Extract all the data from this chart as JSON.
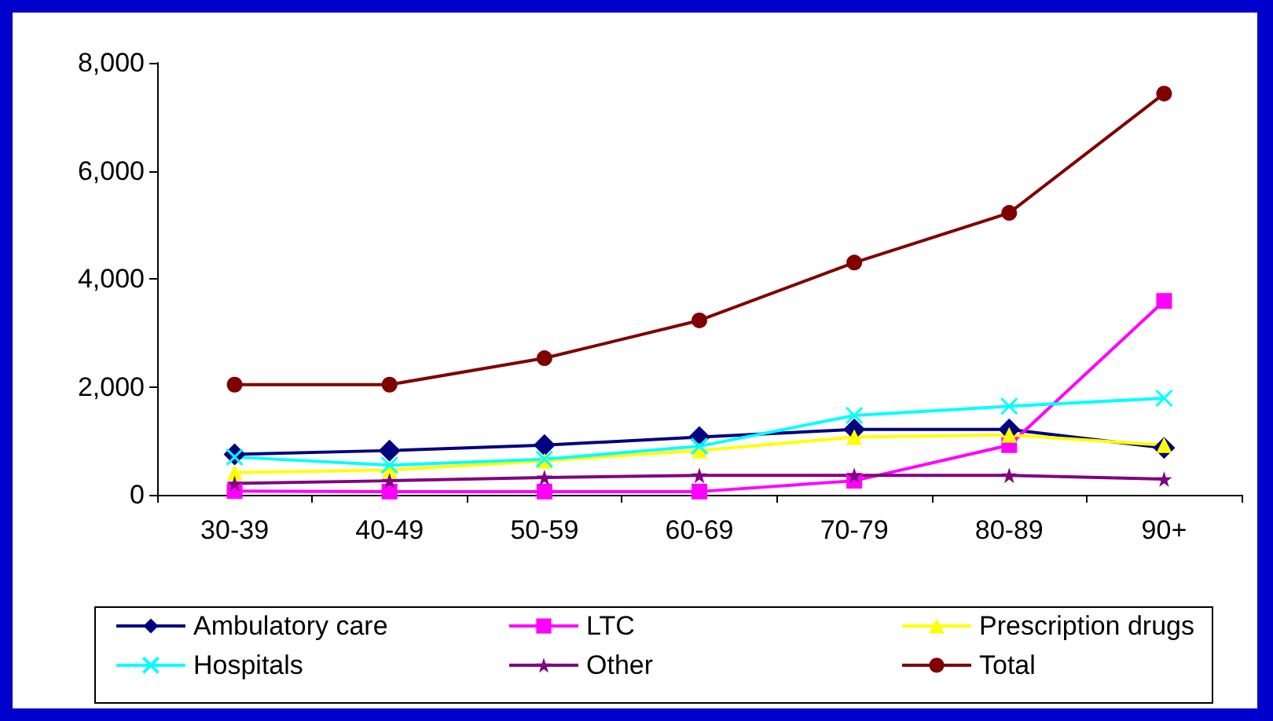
{
  "chart_data": {
    "type": "line",
    "categories": [
      "30-39",
      "40-49",
      "50-59",
      "60-69",
      "70-79",
      "80-89",
      "90+"
    ],
    "series": [
      {
        "name": "Ambulatory care",
        "color": "#000080",
        "marker": "diamond",
        "values": [
          750,
          820,
          920,
          1070,
          1210,
          1210,
          870
        ]
      },
      {
        "name": "LTC",
        "color": "#ff00ff",
        "marker": "square",
        "values": [
          70,
          60,
          60,
          60,
          260,
          920,
          3590
        ]
      },
      {
        "name": "Prescription drugs",
        "color": "#ffff00",
        "marker": "triangle",
        "values": [
          410,
          460,
          630,
          820,
          1070,
          1110,
          920
        ]
      },
      {
        "name": "Hospitals",
        "color": "#00ffff",
        "marker": "cross",
        "values": [
          700,
          550,
          660,
          900,
          1470,
          1640,
          1790
        ]
      },
      {
        "name": "Other",
        "color": "#800080",
        "marker": "star",
        "values": [
          210,
          260,
          320,
          360,
          360,
          360,
          290
        ]
      },
      {
        "name": "Total",
        "color": "#800000",
        "marker": "circle",
        "values": [
          2040,
          2040,
          2530,
          3230,
          4300,
          5220,
          7430
        ]
      }
    ],
    "ylim": [
      0,
      8000
    ],
    "yticks": [
      {
        "value": 0,
        "label": "0"
      },
      {
        "value": 2000,
        "label": "2,000"
      },
      {
        "value": 4000,
        "label": "4,000"
      },
      {
        "value": 6000,
        "label": "6,000"
      },
      {
        "value": 8000,
        "label": "8,000"
      }
    ],
    "grid": false,
    "legend": "bottom",
    "line_style": "solid"
  }
}
